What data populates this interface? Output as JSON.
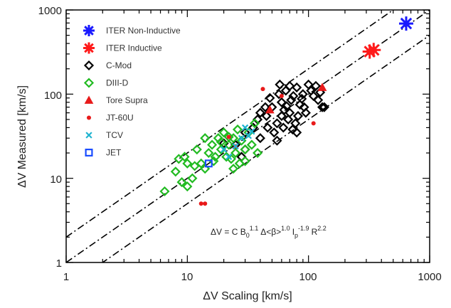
{
  "chart_data": {
    "type": "scatter",
    "xscale": "log",
    "yscale": "log",
    "xlim": [
      1,
      1000
    ],
    "ylim": [
      1,
      1000
    ],
    "xticks": [
      "1",
      "10",
      "100",
      "1000"
    ],
    "yticks": [
      "1",
      "10",
      "100",
      "1000"
    ],
    "xlabel": "ΔV Scaling [km/s]",
    "ylabel": "ΔV Measured [km/s]",
    "legend_position": "top-left",
    "formula": {
      "prefix": "ΔV = C B",
      "b_sub": "0",
      "b_exp": "1.1",
      "beta_text": "Δ<β>",
      "beta_exp": "1.0",
      "i_text": "I",
      "i_sub": "p",
      "i_exp": "-1.9",
      "r_text": "R",
      "r_exp": "2.2"
    },
    "reference_lines": [
      {
        "slope": 1,
        "factor": 2,
        "style": "dash-dot"
      },
      {
        "slope": 1,
        "factor": 1,
        "style": "dash-dot"
      },
      {
        "slope": 1,
        "factor": 0.5,
        "style": "dash-dot"
      }
    ],
    "series": [
      {
        "name": "ITER Non-Inductive",
        "color": "#1a1aff",
        "marker": "star",
        "points": [
          [
            640,
            690
          ]
        ]
      },
      {
        "name": "ITER Inductive",
        "color": "#ff1a1a",
        "marker": "star",
        "points": [
          [
            320,
            320
          ],
          [
            345,
            335
          ]
        ]
      },
      {
        "name": "C-Mod",
        "color": "#000000",
        "marker": "diamond",
        "points": [
          [
            55,
            45
          ],
          [
            60,
            80
          ],
          [
            65,
            110
          ],
          [
            70,
            60
          ],
          [
            75,
            95
          ],
          [
            50,
            70
          ],
          [
            45,
            55
          ],
          [
            80,
            120
          ],
          [
            85,
            75
          ],
          [
            90,
            100
          ],
          [
            62,
            40
          ],
          [
            58,
            130
          ],
          [
            68,
            50
          ],
          [
            72,
            85
          ],
          [
            52,
            35
          ],
          [
            48,
            90
          ],
          [
            40,
            60
          ],
          [
            95,
            60
          ],
          [
            100,
            130
          ],
          [
            110,
            95
          ],
          [
            120,
            85
          ],
          [
            130,
            70
          ],
          [
            105,
            110
          ],
          [
            38,
            50
          ],
          [
            35,
            40
          ],
          [
            30,
            35
          ],
          [
            30,
            22
          ],
          [
            25,
            25
          ],
          [
            40,
            30
          ],
          [
            78,
            45
          ],
          [
            66,
            72
          ],
          [
            82,
            55
          ],
          [
            88,
            88
          ],
          [
            57,
            100
          ],
          [
            63,
            65
          ],
          [
            74,
            38
          ],
          [
            55,
            28
          ],
          [
            115,
            125
          ],
          [
            125,
            105
          ],
          [
            44,
            70
          ],
          [
            46,
            40
          ],
          [
            92,
            70
          ],
          [
            70,
            125
          ],
          [
            80,
            35
          ],
          [
            60,
            55
          ],
          [
            135,
            70
          ],
          [
            20,
            26
          ],
          [
            28,
            18
          ]
        ]
      },
      {
        "name": "DIII-D",
        "color": "#22bb22",
        "marker": "diamond",
        "points": [
          [
            6.5,
            7
          ],
          [
            8,
            12
          ],
          [
            9,
            9
          ],
          [
            10,
            8
          ],
          [
            9.5,
            18
          ],
          [
            11,
            10
          ],
          [
            12,
            22
          ],
          [
            13,
            15
          ],
          [
            14,
            30
          ],
          [
            15,
            20
          ],
          [
            16,
            25
          ],
          [
            17,
            18
          ],
          [
            18,
            30
          ],
          [
            19,
            22
          ],
          [
            20,
            35
          ],
          [
            21,
            18
          ],
          [
            22,
            25
          ],
          [
            23,
            17
          ],
          [
            24,
            30
          ],
          [
            25,
            20
          ],
          [
            27,
            15
          ],
          [
            28,
            28
          ],
          [
            30,
            22
          ],
          [
            32,
            35
          ],
          [
            34,
            25
          ],
          [
            36,
            45
          ],
          [
            38,
            20
          ],
          [
            14,
            13
          ],
          [
            11.5,
            14
          ],
          [
            16.5,
            16
          ],
          [
            24,
            13
          ],
          [
            19,
            27
          ],
          [
            26,
            38
          ],
          [
            30,
            16
          ],
          [
            22,
            31
          ],
          [
            8.5,
            17
          ],
          [
            10,
            15
          ]
        ]
      },
      {
        "name": "Tore Supra",
        "color": "#e81a1a",
        "marker": "triangle",
        "points": [
          [
            130,
            120
          ],
          [
            48,
            65
          ]
        ]
      },
      {
        "name": "JT-60U",
        "color": "#e81a1a",
        "marker": "dot",
        "points": [
          [
            13,
            5
          ],
          [
            14,
            5
          ],
          [
            42,
            115
          ],
          [
            60,
            95
          ],
          [
            110,
            45
          ],
          [
            25,
            24
          ],
          [
            22,
            31
          ]
        ]
      },
      {
        "name": "TCV",
        "color": "#20b4d0",
        "marker": "x",
        "points": [
          [
            22,
            18
          ],
          [
            25,
            24
          ],
          [
            28,
            30
          ],
          [
            30,
            40
          ],
          [
            32,
            32
          ],
          [
            34,
            36
          ],
          [
            20,
            22
          ]
        ]
      },
      {
        "name": "JET",
        "color": "#1a4cff",
        "marker": "square",
        "points": [
          [
            15,
            15
          ]
        ]
      }
    ]
  }
}
